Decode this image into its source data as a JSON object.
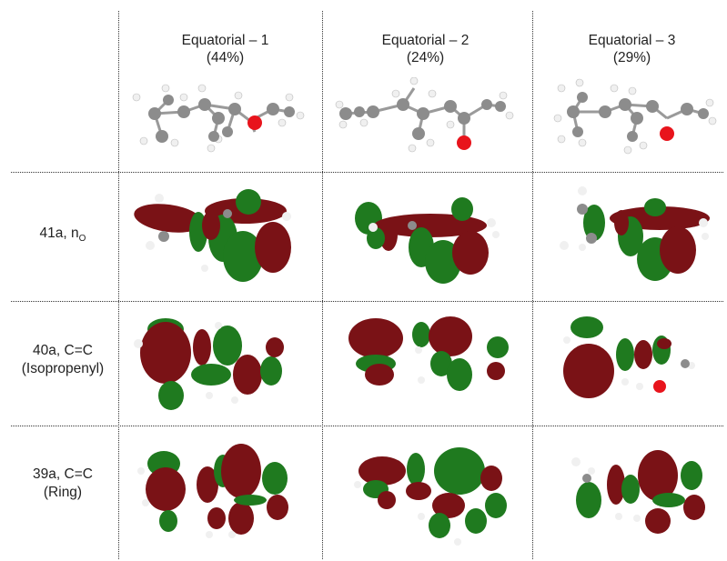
{
  "columns": [
    {
      "title": "Equatorial – 1",
      "pct": "(44%)"
    },
    {
      "title": "Equatorial – 2",
      "pct": "(24%)"
    },
    {
      "title": "Equatorial – 3",
      "pct": "(29%)"
    }
  ],
  "rows": [
    {
      "label_main": "41a, n",
      "label_sub": "O",
      "label_line2": ""
    },
    {
      "label_main": "40a, C=C",
      "label_sub": "",
      "label_line2": "(Isopropenyl)"
    },
    {
      "label_main": "39a, C=C",
      "label_sub": "",
      "label_line2": "(Ring)"
    }
  ],
  "colors": {
    "lobe_positive": "#7a1216",
    "lobe_negative": "#1f7a1f",
    "carbon": "#8c8c8c",
    "hydrogen": "#f2f2f2",
    "oxygen": "#e8141c",
    "grid_line": "#333333"
  }
}
